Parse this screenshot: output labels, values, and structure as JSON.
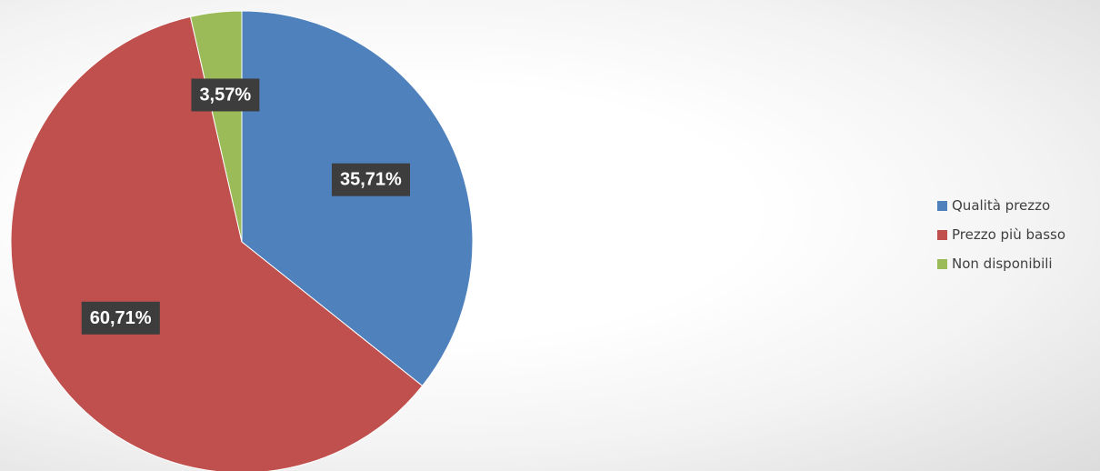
{
  "chart_data": {
    "type": "pie",
    "title": "",
    "categories": [
      "Qualità prezzo",
      "Prezzo più basso",
      "Non disponibili"
    ],
    "values": [
      35.71,
      60.71,
      3.57
    ],
    "data_labels": [
      "35,71%",
      "60,71%",
      "3,57%"
    ],
    "colors": [
      "#4f81bd",
      "#c0504d",
      "#9bbb59"
    ],
    "legend_position": "right",
    "start_angle_deg": 0,
    "direction": "clockwise"
  }
}
